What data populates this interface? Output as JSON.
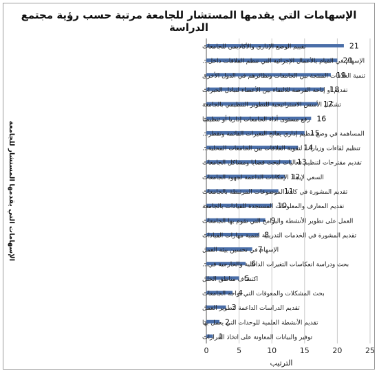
{
  "chart_data": {
    "type": "bar",
    "orientation": "horizontal",
    "title": "الإسهامات التي يقدمها المستشار للجامعة مرتبة حسب رؤية مجتمع الدراسة",
    "xlabel": "الترتيب",
    "ylabel": "الإسهامات التي يقدمها المستشار للجامعة",
    "xlim": [
      0,
      25
    ],
    "xticks": [
      "0",
      "5",
      "10",
      "15",
      "20",
      "25"
    ],
    "grid": true,
    "bar_color": "#4a6ea8",
    "categories": [
      "تقييم الوضع الإداري والأكاديمي للجامعات",
      "الإسهام في القيام بالأعمال الإجرائية التي تنظم العلاقات داخل...",
      "تنمية العلاقات المنتجة بين الجامعات ونظائرهم في الدول الأخرى",
      "تقديم أو إتاحة الفرصة للالتقاء بين الأعضاء لتبادل الخبرات",
      "تشكيل الأسس الاستراتيجية للتطوير التنظيمي بالجامعة",
      "رفع مستوى أداء الجامعات إداريا أو تنظيميا",
      "المساهمة في وضع تنظيم إداري يعالج التغيرات القائمة وتقطر...",
      "تنظيم لقاءات وزيارات لتقوية العلاقات بين الجامعات المحلية...",
      "تقديم مقترحات لتنظيم فعاليات لبحث قضايا ومشاكل الجامعات",
      "السعي لإيجاد الإمكانات الداعمة لجهود الجامعات",
      "تقديم المشورة في كافة الموضوعات المرتبطة بالجامعات",
      "تقديم المعارف والمعلومات المستجدة للقيادات بالجامعة",
      "العمل على تطوير الأنشطة والبرامج التي تقوم بها الجامعات",
      "تقديم المشورة في الخدمات التدريبية لتنمية مهارات القيادات",
      "الإسهام في تحسين بيئة العمل",
      "بحث ودراسة انعكاسات التغيرات الداخلية والخارجية في...",
      "اكتشاف مناطق الخلل",
      "بحث المشكلات والمعوقات التي تواجه الجامعات",
      "تقديم الدراسات الداعمة لتطوير العمل",
      "تقديم الأنشطة العلمية للوحدات التي يعمل بها",
      "توفير والبيانات المعاونة على اتخاذ القرارات"
    ],
    "values": [
      21,
      20,
      19,
      18,
      17,
      16,
      15,
      14,
      13,
      12,
      11,
      10,
      9,
      8,
      7,
      6,
      5,
      4,
      3,
      2,
      1
    ],
    "data_labels": [
      "21",
      "20",
      "19",
      "18",
      "17",
      "16",
      "15",
      "14",
      "13",
      "12",
      "11",
      "10",
      "9",
      "8",
      "7",
      "6",
      "5",
      "4",
      "3",
      "2",
      "1"
    ]
  }
}
